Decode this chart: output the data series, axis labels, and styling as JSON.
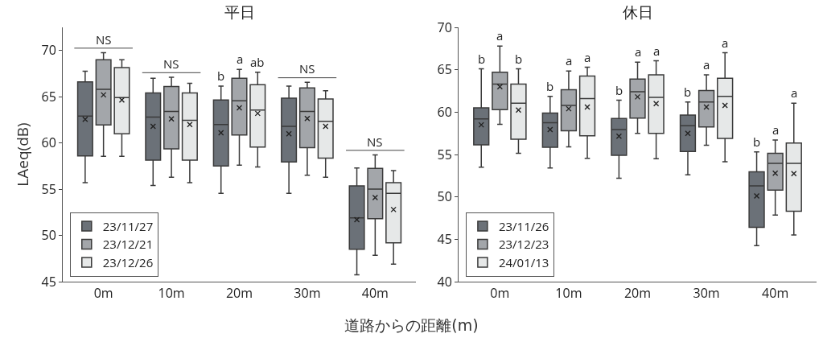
{
  "chart_data": [
    {
      "type": "box",
      "title": "平日",
      "xlabel": "道路からの距離(m)",
      "ylabel": "LAeq(dB)",
      "categories": [
        "0m",
        "10m",
        "20m",
        "30m",
        "40m"
      ],
      "ylim": [
        45,
        72.5
      ],
      "yticks": [
        45,
        50,
        55,
        60,
        65,
        70
      ],
      "grid": false,
      "legend": "bottom left",
      "series": [
        {
          "name": "23/11/27",
          "color": "#6b7178",
          "boxes": [
            {
              "low": 55.7,
              "q1": 58.6,
              "median": 62.9,
              "q3": 66.6,
              "high": 67.75,
              "mean": 62.55
            },
            {
              "low": 55.4,
              "q1": 58.15,
              "median": 62.8,
              "q3": 65.4,
              "high": 67.0,
              "mean": 61.8
            },
            {
              "low": 54.55,
              "q1": 57.5,
              "median": 62.0,
              "q3": 64.65,
              "high": 66.15,
              "mean": 61.1
            },
            {
              "low": 54.55,
              "q1": 57.95,
              "median": 61.8,
              "q3": 64.85,
              "high": 66.15,
              "mean": 61.0
            },
            {
              "low": 45.75,
              "q1": 48.5,
              "median": 51.9,
              "q3": 55.35,
              "high": 57.3,
              "mean": 51.7
            }
          ]
        },
        {
          "name": "23/12/21",
          "color": "#a3a6aa",
          "boxes": [
            {
              "low": 58.55,
              "q1": 61.95,
              "median": 65.8,
              "q3": 69.0,
              "high": 69.75,
              "mean": 65.2
            },
            {
              "low": 56.3,
              "q1": 59.35,
              "median": 63.4,
              "q3": 66.1,
              "high": 67.1,
              "mean": 62.6
            },
            {
              "low": 57.6,
              "q1": 60.85,
              "median": 64.55,
              "q3": 67.0,
              "high": 67.95,
              "mean": 63.8
            },
            {
              "low": 56.5,
              "q1": 59.5,
              "median": 63.4,
              "q3": 65.95,
              "high": 66.55,
              "mean": 62.65
            },
            {
              "low": 47.85,
              "q1": 51.8,
              "median": 55.0,
              "q3": 57.25,
              "high": 58.7,
              "mean": 54.1
            }
          ]
        },
        {
          "name": "23/12/26",
          "color": "#e6e8e8",
          "boxes": [
            {
              "low": 58.55,
              "q1": 61.0,
              "median": 64.9,
              "q3": 68.15,
              "high": 69.0,
              "mean": 64.65
            },
            {
              "low": 55.7,
              "q1": 58.15,
              "median": 62.45,
              "q3": 65.4,
              "high": 66.45,
              "mean": 62.0
            },
            {
              "low": 57.4,
              "q1": 59.55,
              "median": 63.55,
              "q3": 66.3,
              "high": 67.65,
              "mean": 63.2
            },
            {
              "low": 56.3,
              "q1": 58.35,
              "median": 62.35,
              "q3": 64.75,
              "high": 65.65,
              "mean": 61.8
            },
            {
              "low": 46.9,
              "q1": 49.2,
              "median": 54.55,
              "q3": 55.7,
              "high": 57.0,
              "mean": 52.8
            }
          ]
        }
      ],
      "annotations": [
        "NS",
        "NS",
        "b",
        "a",
        "ab",
        "NS",
        "NS"
      ]
    },
    {
      "type": "box",
      "title": "休日",
      "categories": [
        "0m",
        "10m",
        "20m",
        "30m",
        "40m"
      ],
      "ylim": [
        40,
        70
      ],
      "yticks": [
        40,
        45,
        50,
        55,
        60,
        65,
        70
      ],
      "grid": false,
      "legend": "bottom left",
      "series": [
        {
          "name": "23/11/26",
          "color": "#6b7178",
          "boxes": [
            {
              "low": 53.5,
              "q1": 56.15,
              "median": 59.2,
              "q3": 60.5,
              "high": 65.1,
              "mean": 58.5
            },
            {
              "low": 53.4,
              "q1": 55.85,
              "median": 58.75,
              "q3": 59.9,
              "high": 61.85,
              "mean": 57.95
            },
            {
              "low": 52.2,
              "q1": 54.9,
              "median": 57.95,
              "q3": 59.25,
              "high": 61.4,
              "mean": 57.15
            },
            {
              "low": 52.6,
              "q1": 55.35,
              "median": 58.4,
              "q3": 59.65,
              "high": 61.2,
              "mean": 57.5
            },
            {
              "low": 44.25,
              "q1": 46.4,
              "median": 51.3,
              "q3": 52.95,
              "high": 55.3,
              "mean": 50.1
            }
          ]
        },
        {
          "name": "23/12/23",
          "color": "#a3a6aa",
          "boxes": [
            {
              "low": 58.55,
              "q1": 60.3,
              "median": 63.3,
              "q3": 64.7,
              "high": 67.8,
              "mean": 63.0
            },
            {
              "low": 55.9,
              "q1": 57.8,
              "median": 60.8,
              "q3": 62.65,
              "high": 64.85,
              "mean": 60.4
            },
            {
              "low": 57.5,
              "q1": 59.3,
              "median": 62.4,
              "q3": 63.9,
              "high": 65.9,
              "mean": 61.8
            },
            {
              "low": 56.1,
              "q1": 58.25,
              "median": 61.2,
              "q3": 62.55,
              "high": 64.4,
              "mean": 60.6
            },
            {
              "low": 47.85,
              "q1": 50.8,
              "median": 53.95,
              "q3": 55.15,
              "high": 56.7,
              "mean": 52.8
            }
          ]
        },
        {
          "name": "24/01/13",
          "color": "#e6e8e8",
          "boxes": [
            {
              "low": 55.15,
              "q1": 56.8,
              "median": 61.05,
              "q3": 63.3,
              "high": 65.1,
              "mean": 60.25
            },
            {
              "low": 54.55,
              "q1": 57.2,
              "median": 61.6,
              "q3": 64.25,
              "high": 65.3,
              "mean": 60.6
            },
            {
              "low": 54.5,
              "q1": 57.5,
              "median": 61.75,
              "q3": 64.4,
              "high": 66.05,
              "mean": 61.0
            },
            {
              "low": 54.15,
              "q1": 56.9,
              "median": 61.85,
              "q3": 64.0,
              "high": 67.0,
              "mean": 60.8
            },
            {
              "low": 45.5,
              "q1": 48.3,
              "median": 53.95,
              "q3": 56.35,
              "high": 61.05,
              "mean": 52.75
            }
          ]
        }
      ],
      "annotations": [
        "b",
        "a",
        "b",
        "b",
        "a",
        "a",
        "b",
        "a",
        "a",
        "b",
        "a",
        "a",
        "b",
        "a",
        "a"
      ]
    }
  ]
}
